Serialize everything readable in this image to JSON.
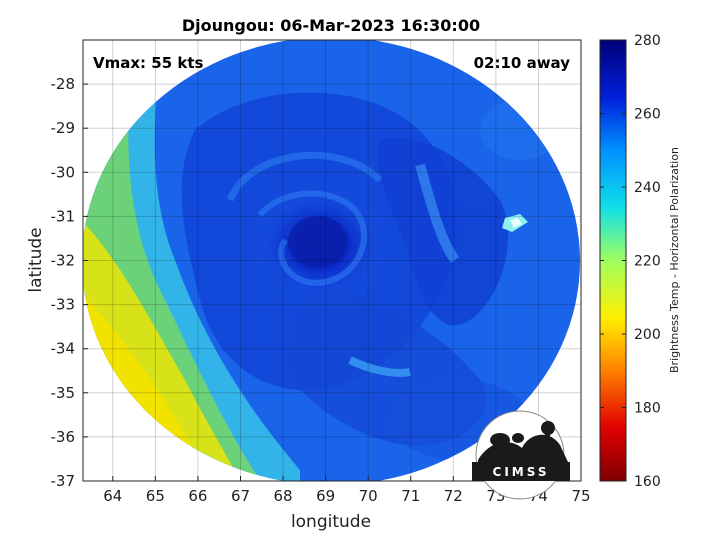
{
  "title": "Djoungou: 06-Mar-2023 16:30:00",
  "annotations": {
    "vmax": "Vmax: 55 kts",
    "time_away": "02:10 away"
  },
  "map": {
    "xlabel": "longitude",
    "ylabel": "latitude",
    "xlim": [
      63.3,
      75.0
    ],
    "ylim": [
      -37.0,
      -27.0
    ],
    "x_ticks": [
      64,
      65,
      66,
      67,
      68,
      69,
      70,
      71,
      72,
      73,
      74,
      75
    ],
    "y_ticks": [
      -28,
      -29,
      -30,
      -31,
      -32,
      -33,
      -34,
      -35,
      -36,
      -37
    ],
    "grid": true,
    "swath_center": [
      69.2,
      -32.0
    ],
    "eye_center": [
      69.0,
      -31.6
    ]
  },
  "colorbar": {
    "label": "Brightness Temp - Horizontal Polarization",
    "range": [
      160,
      280
    ],
    "ticks": [
      160,
      180,
      200,
      220,
      240,
      260,
      280
    ],
    "colors": [
      "#7f0000",
      "#ff0000",
      "#ff9900",
      "#ffff00",
      "#55ff99",
      "#00ccff",
      "#0066ff",
      "#0000cc",
      "#000080"
    ]
  },
  "logo": {
    "text": "CIMSS"
  }
}
